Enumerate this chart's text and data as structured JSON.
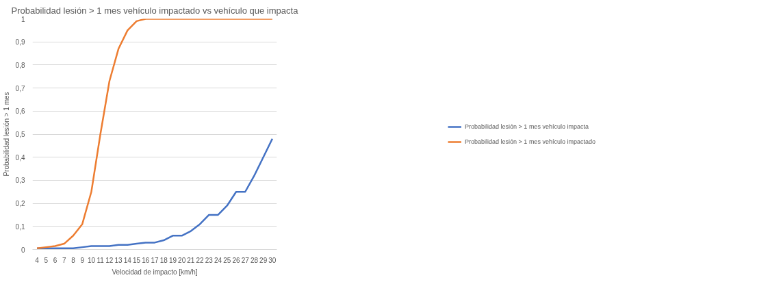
{
  "chart_data": {
    "type": "line",
    "title": "Probabilidad lesión > 1 mes vehículo impactado vs vehículo que impacta",
    "xlabel": "Velocidad de impacto [km/h]",
    "ylabel": "Probabilidad lesión > 1 mes",
    "categories": [
      "4",
      "5",
      "6",
      "7",
      "8",
      "9",
      "10",
      "11",
      "12",
      "13",
      "14",
      "15",
      "16",
      "17",
      "18",
      "19",
      "20",
      "21",
      "22",
      "23",
      "24",
      "25",
      "26",
      "27",
      "28",
      "29",
      "30"
    ],
    "series": [
      {
        "name": "Probabilidad lesión > 1 mes vehículo impacta",
        "color": "#4472c4",
        "values": [
          0.005,
          0.005,
          0.005,
          0.005,
          0.005,
          0.01,
          0.015,
          0.015,
          0.015,
          0.02,
          0.02,
          0.025,
          0.03,
          0.03,
          0.04,
          0.06,
          0.06,
          0.08,
          0.11,
          0.15,
          0.15,
          0.19,
          0.25,
          0.25,
          0.32,
          0.4,
          0.48
        ]
      },
      {
        "name": "Probabilidad lesión > 1 mes vehículo impactado",
        "color": "#ed7d31",
        "values": [
          0.005,
          0.01,
          0.015,
          0.025,
          0.06,
          0.11,
          0.25,
          0.5,
          0.73,
          0.87,
          0.95,
          0.99,
          1,
          1,
          1,
          1,
          1,
          1,
          1,
          1,
          1,
          1,
          1,
          1,
          1,
          1,
          1
        ]
      }
    ],
    "ylim": [
      0,
      1
    ],
    "yticks": [
      0,
      {
        "value": 0.1,
        "label": "0,1"
      },
      {
        "value": 0.2,
        "label": "0,2"
      },
      {
        "value": 0.3,
        "label": "0,3"
      },
      {
        "value": 0.4,
        "label": "0,4"
      },
      {
        "value": 0.5,
        "label": "0,5"
      },
      {
        "value": 0.6,
        "label": "0,6"
      },
      {
        "value": 0.7,
        "label": "0,7"
      },
      {
        "value": 0.8,
        "label": "0,8"
      },
      {
        "value": 0.9,
        "label": "0,9"
      },
      1
    ],
    "grid": "y",
    "legend": "right",
    "marker": "none",
    "line_style": "solid"
  }
}
